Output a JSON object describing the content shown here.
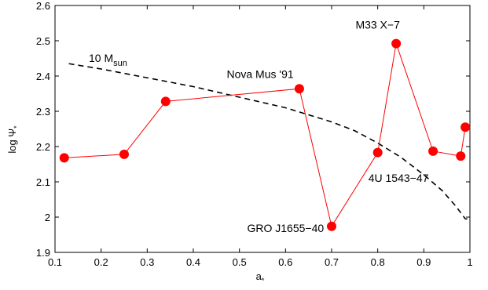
{
  "chart_data": {
    "type": "line",
    "xlabel": "a",
    "xlabel_sub": "*",
    "ylabel": "log Ψ",
    "ylabel_sub": "*",
    "xlim": [
      0.1,
      1.0
    ],
    "ylim": [
      1.9,
      2.6
    ],
    "xticks": [
      0.1,
      0.2,
      0.3,
      0.4,
      0.5,
      0.6,
      0.7,
      0.8,
      0.9,
      1.0
    ],
    "xtick_labels": [
      "0.1",
      "0.2",
      "0.3",
      "0.4",
      "0.5",
      "0.6",
      "0.7",
      "0.8",
      "0.9",
      "1"
    ],
    "yticks": [
      1.9,
      2.0,
      2.1,
      2.2,
      2.3,
      2.4,
      2.5,
      2.6
    ],
    "ytick_labels": [
      "1.9",
      "2",
      "2.1",
      "2.2",
      "2.3",
      "2.4",
      "2.5",
      "2.6"
    ],
    "grid": false,
    "series": [
      {
        "style": "red line with filled circle markers",
        "color": "#ff0000",
        "x": [
          0.12,
          0.25,
          0.34,
          0.63,
          0.7,
          0.8,
          0.84,
          0.92,
          0.98,
          0.99
        ],
        "y": [
          2.168,
          2.178,
          2.328,
          2.364,
          1.974,
          2.183,
          2.492,
          2.187,
          2.173,
          2.255
        ]
      },
      {
        "style": "black dashed curve",
        "color": "#000000",
        "x": [
          0.13,
          0.2,
          0.3,
          0.4,
          0.5,
          0.6,
          0.7,
          0.75,
          0.8,
          0.85,
          0.9,
          0.94,
          0.97,
          0.99,
          1.0
        ],
        "y": [
          2.435,
          2.42,
          2.395,
          2.37,
          2.34,
          2.31,
          2.27,
          2.245,
          2.21,
          2.17,
          2.12,
          2.075,
          2.03,
          1.995,
          1.995
        ]
      }
    ],
    "annotations": [
      {
        "name": "label-10-msun",
        "text": "10 M",
        "sub": "sun",
        "x": 0.215,
        "y": 2.44
      },
      {
        "name": "label-nova-mus",
        "text": "Nova Mus '91",
        "x": 0.545,
        "y": 2.395
      },
      {
        "name": "label-m33-x7",
        "text": "M33 X−7",
        "x": 0.8,
        "y": 2.535
      },
      {
        "name": "label-4u-1543",
        "text": "4U 1543−47",
        "x": 0.845,
        "y": 2.1
      },
      {
        "name": "label-gro-j1655",
        "text": "GRO J1655−40",
        "x": 0.6,
        "y": 1.958
      }
    ]
  }
}
